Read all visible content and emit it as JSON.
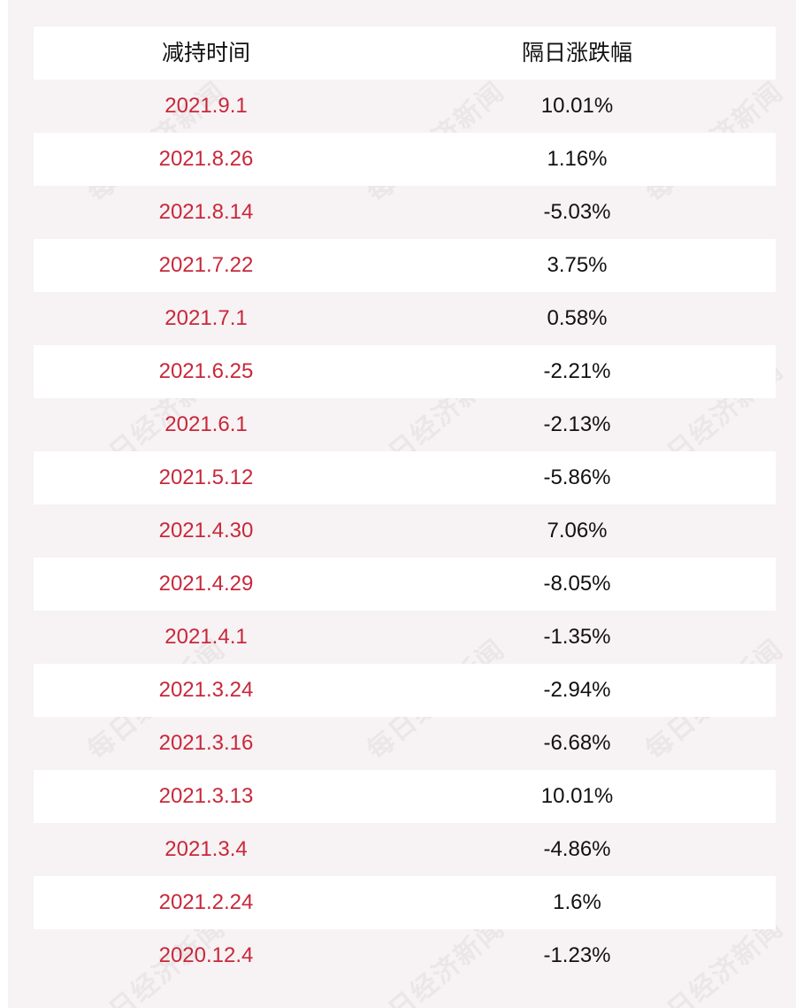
{
  "table": {
    "headers": {
      "date": "减持时间",
      "change": "隔日涨跌幅"
    },
    "rows": [
      {
        "date": "2021.9.1",
        "change": "10.01%"
      },
      {
        "date": "2021.8.26",
        "change": "1.16%"
      },
      {
        "date": "2021.8.14",
        "change": "-5.03%"
      },
      {
        "date": "2021.7.22",
        "change": "3.75%"
      },
      {
        "date": "2021.7.1",
        "change": "0.58%"
      },
      {
        "date": "2021.6.25",
        "change": "-2.21%"
      },
      {
        "date": "2021.6.1",
        "change": "-2.13%"
      },
      {
        "date": "2021.5.12",
        "change": "-5.86%"
      },
      {
        "date": "2021.4.30",
        "change": "7.06%"
      },
      {
        "date": "2021.4.29",
        "change": "-8.05%"
      },
      {
        "date": "2021.4.1",
        "change": "-1.35%"
      },
      {
        "date": "2021.3.24",
        "change": "-2.94%"
      },
      {
        "date": "2021.3.16",
        "change": "-6.68%"
      },
      {
        "date": "2021.3.13",
        "change": "10.01%"
      },
      {
        "date": "2021.3.4",
        "change": "-4.86%"
      },
      {
        "date": "2021.2.24",
        "change": "1.6%"
      },
      {
        "date": "2020.12.4",
        "change": "-1.23%"
      }
    ]
  },
  "watermark": {
    "text": "每日经济新闻"
  },
  "colors": {
    "date_text": "#c8283a",
    "value_text": "#111111",
    "background": "#f7f2f4",
    "white_row": "#ffffff"
  }
}
